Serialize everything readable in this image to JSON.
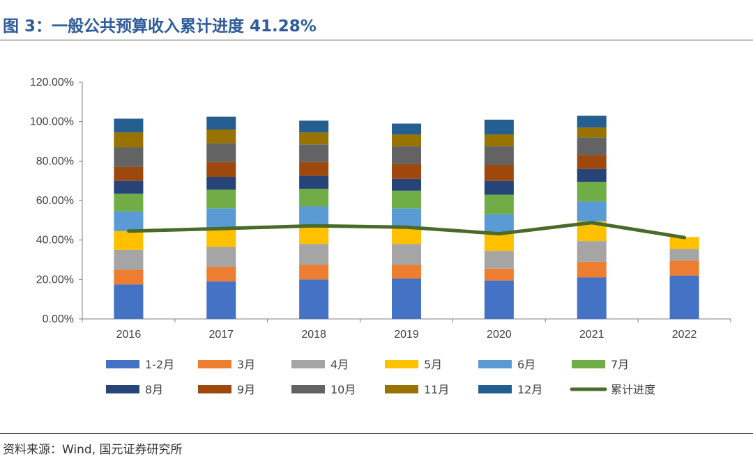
{
  "header": {
    "title": "图 3：一般公共预算收入累计进度 41.28%"
  },
  "footer": {
    "source": "资料来源：Wind, 国元证券研究所"
  },
  "chart_data": {
    "type": "bar",
    "stacked": true,
    "title": "图 3：一般公共预算收入累计进度 41.28%",
    "categories": [
      "2016",
      "2017",
      "2018",
      "2019",
      "2020",
      "2021",
      "2022"
    ],
    "ylim": [
      0,
      120
    ],
    "yticks": [
      0,
      20,
      40,
      60,
      80,
      100,
      120
    ],
    "ytick_labels": [
      "0.00%",
      "20.00%",
      "40.00%",
      "60.00%",
      "80.00%",
      "100.00%",
      "120.00%"
    ],
    "grid": false,
    "legend_position": "bottom",
    "series": [
      {
        "name": "1-2月",
        "color": "#4472c4",
        "values": [
          17.5,
          19,
          20,
          20.5,
          19.5,
          21,
          22
        ]
      },
      {
        "name": "3月",
        "color": "#ed7d31",
        "values": [
          7.5,
          7.5,
          7.5,
          7,
          6,
          8,
          7.5
        ]
      },
      {
        "name": "4月",
        "color": "#a5a5a5",
        "values": [
          10,
          10,
          10.5,
          10.5,
          9,
          10.5,
          6
        ]
      },
      {
        "name": "5月",
        "color": "#ffc000",
        "values": [
          9.5,
          9,
          9,
          8,
          9,
          10,
          6
        ]
      },
      {
        "name": "6月",
        "color": "#5b9bd5",
        "values": [
          10,
          10.5,
          10,
          10,
          9.5,
          10,
          null
        ]
      },
      {
        "name": "7月",
        "color": "#70ad47",
        "values": [
          9,
          9.5,
          9,
          9,
          10,
          10,
          null
        ]
      },
      {
        "name": "8月",
        "color": "#264478",
        "values": [
          6.5,
          6.5,
          6.5,
          6,
          7,
          6.5,
          null
        ]
      },
      {
        "name": "9月",
        "color": "#9e480e",
        "values": [
          7,
          7.5,
          7,
          7.5,
          8,
          7,
          null
        ]
      },
      {
        "name": "10月",
        "color": "#636363",
        "values": [
          10,
          9.5,
          9,
          9,
          9.5,
          9,
          null
        ]
      },
      {
        "name": "11月",
        "color": "#997300",
        "values": [
          7.5,
          7,
          6,
          6,
          6,
          5,
          null
        ]
      },
      {
        "name": "12月",
        "color": "#255e91",
        "values": [
          7,
          6.5,
          6,
          5.5,
          7.5,
          6,
          null
        ]
      }
    ],
    "line_series": {
      "name": "累计进度",
      "color": "#4a6a2a",
      "values": [
        44.5,
        45.8,
        47.2,
        46.5,
        43.2,
        48.8,
        41.28
      ]
    }
  }
}
